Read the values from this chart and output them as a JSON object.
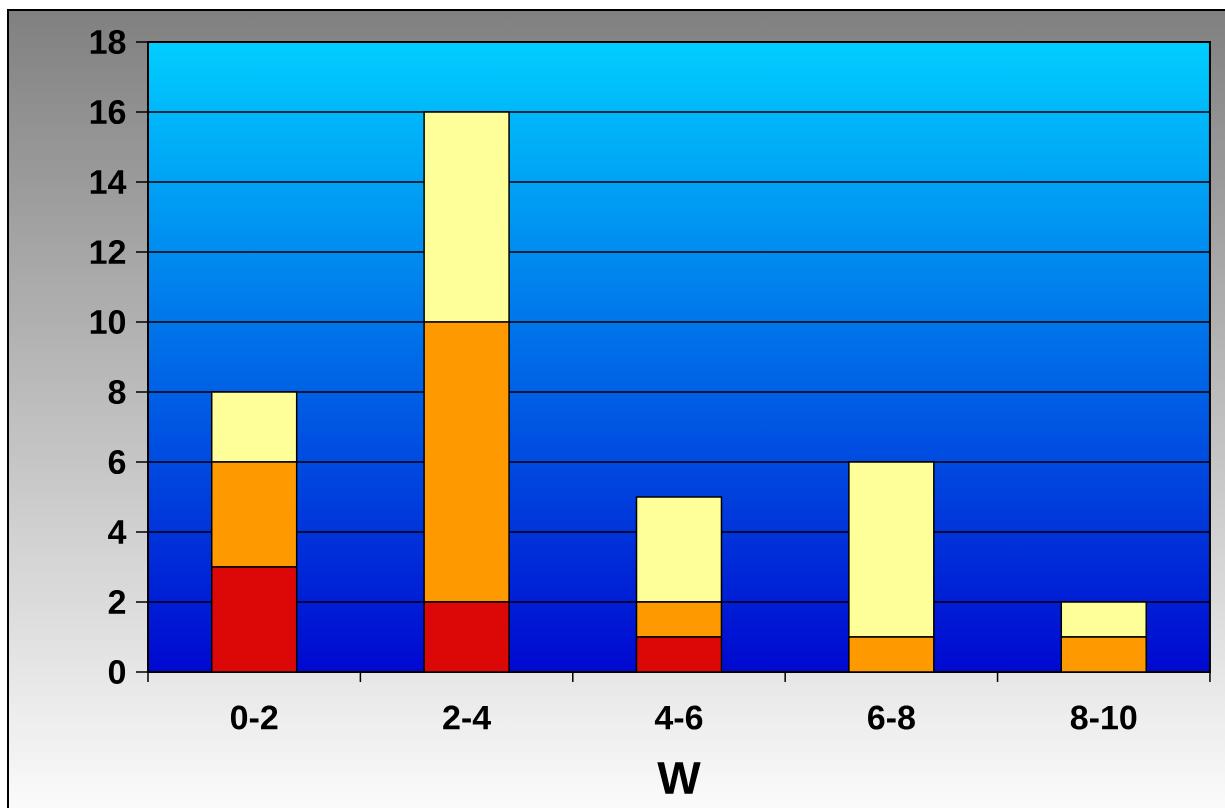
{
  "chart_data": {
    "type": "bar",
    "stacked": true,
    "xlabel": "W",
    "categories": [
      "0-2",
      "2-4",
      "4-6",
      "6-8",
      "8-10"
    ],
    "series": [
      {
        "color": "#dc0808",
        "values": [
          3,
          2,
          1,
          0,
          0
        ]
      },
      {
        "color": "#ff9900",
        "values": [
          3,
          8,
          1,
          1,
          1
        ]
      },
      {
        "color": "#ffff99",
        "values": [
          2,
          6,
          3,
          5,
          1
        ]
      }
    ],
    "ylim": [
      0,
      18
    ],
    "yticks": [
      0,
      2,
      4,
      6,
      8,
      10,
      12,
      14,
      16,
      18
    ],
    "grid": "y"
  }
}
